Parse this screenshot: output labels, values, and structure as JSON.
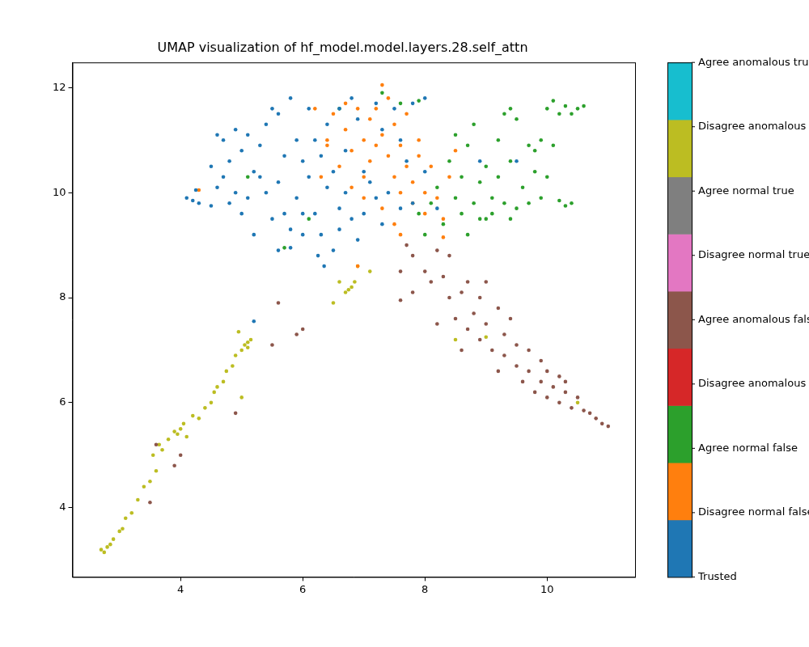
{
  "chart_data": {
    "type": "scatter",
    "title": "UMAP visualization of hf_model.model.layers.28.self_attn",
    "xlim": [
      2.23,
      11.44
    ],
    "xticks": [
      4,
      6,
      8,
      10
    ],
    "ylim": [
      2.68,
      12.48
    ],
    "yticks": [
      4,
      6,
      8,
      10,
      12
    ],
    "grid": false,
    "marker": "circle",
    "series": [
      {
        "name": "Trusted",
        "color": "#1f77b4",
        "values": [
          [
            4.1,
            9.9
          ],
          [
            4.2,
            9.85
          ],
          [
            4.3,
            9.8
          ],
          [
            4.25,
            10.05
          ],
          [
            4.5,
            9.75
          ],
          [
            4.6,
            10.1
          ],
          [
            4.7,
            10.3
          ],
          [
            4.8,
            10.6
          ],
          [
            4.7,
            11.0
          ],
          [
            4.9,
            11.2
          ],
          [
            5.0,
            10.8
          ],
          [
            5.1,
            11.1
          ],
          [
            5.2,
            10.4
          ],
          [
            5.3,
            10.9
          ],
          [
            5.4,
            11.3
          ],
          [
            5.5,
            11.6
          ],
          [
            5.6,
            11.5
          ],
          [
            5.4,
            10.0
          ],
          [
            5.6,
            10.2
          ],
          [
            5.7,
            9.6
          ],
          [
            5.8,
            9.3
          ],
          [
            5.5,
            9.5
          ],
          [
            5.9,
            9.9
          ],
          [
            6.0,
            10.6
          ],
          [
            6.1,
            10.3
          ],
          [
            6.2,
            9.6
          ],
          [
            6.3,
            9.2
          ],
          [
            6.25,
            8.8
          ],
          [
            6.35,
            8.6
          ],
          [
            6.5,
            8.9
          ],
          [
            6.6,
            9.3
          ],
          [
            6.4,
            10.1
          ],
          [
            6.5,
            10.4
          ],
          [
            6.7,
            10.0
          ],
          [
            6.8,
            9.5
          ],
          [
            6.9,
            9.1
          ],
          [
            7.0,
            9.6
          ],
          [
            7.1,
            10.2
          ],
          [
            6.2,
            11.0
          ],
          [
            6.4,
            11.3
          ],
          [
            6.6,
            11.6
          ],
          [
            6.8,
            11.8
          ],
          [
            6.9,
            11.4
          ],
          [
            7.2,
            11.7
          ],
          [
            7.3,
            11.2
          ],
          [
            7.5,
            11.6
          ],
          [
            7.6,
            11.0
          ],
          [
            7.7,
            10.6
          ],
          [
            7.4,
            10.0
          ],
          [
            7.6,
            9.7
          ],
          [
            7.3,
            9.4
          ],
          [
            7.8,
            9.8
          ],
          [
            8.0,
            10.4
          ],
          [
            7.8,
            11.7
          ],
          [
            8.0,
            11.8
          ],
          [
            5.0,
            9.6
          ],
          [
            5.2,
            9.2
          ],
          [
            5.6,
            8.9
          ],
          [
            5.8,
            8.95
          ],
          [
            6.0,
            9.2
          ],
          [
            4.9,
            10.0
          ],
          [
            4.8,
            9.8
          ],
          [
            5.3,
            10.3
          ],
          [
            5.7,
            10.7
          ],
          [
            5.9,
            11.0
          ],
          [
            6.1,
            11.6
          ],
          [
            5.8,
            11.8
          ],
          [
            6.3,
            10.7
          ],
          [
            6.7,
            10.8
          ],
          [
            7.0,
            10.4
          ],
          [
            4.6,
            11.1
          ],
          [
            4.5,
            10.5
          ],
          [
            5.1,
            9.9
          ],
          [
            6.0,
            9.6
          ],
          [
            6.6,
            9.7
          ],
          [
            7.2,
            9.9
          ],
          [
            8.2,
            9.7
          ],
          [
            8.9,
            10.6
          ],
          [
            9.5,
            10.6
          ],
          [
            5.2,
            7.55
          ]
        ]
      },
      {
        "name": "Disagree normal false",
        "color": "#ff7f0e",
        "values": [
          [
            6.4,
            11.0
          ],
          [
            6.5,
            11.5
          ],
          [
            6.6,
            10.5
          ],
          [
            6.7,
            11.2
          ],
          [
            6.8,
            10.8
          ],
          [
            6.9,
            11.6
          ],
          [
            7.0,
            11.0
          ],
          [
            7.1,
            10.6
          ],
          [
            7.1,
            11.4
          ],
          [
            7.2,
            10.9
          ],
          [
            7.3,
            12.05
          ],
          [
            7.3,
            11.1
          ],
          [
            7.4,
            10.7
          ],
          [
            7.4,
            11.8
          ],
          [
            7.5,
            10.3
          ],
          [
            7.5,
            11.3
          ],
          [
            7.6,
            10.0
          ],
          [
            7.6,
            10.9
          ],
          [
            7.7,
            10.5
          ],
          [
            7.7,
            11.5
          ],
          [
            7.8,
            10.2
          ],
          [
            7.8,
            9.8
          ],
          [
            7.9,
            10.7
          ],
          [
            8.0,
            10.0
          ],
          [
            8.0,
            9.6
          ],
          [
            8.1,
            10.5
          ],
          [
            8.2,
            9.9
          ],
          [
            8.3,
            9.5
          ],
          [
            8.4,
            10.3
          ],
          [
            7.5,
            9.4
          ],
          [
            7.3,
            9.7
          ],
          [
            7.0,
            9.9
          ],
          [
            6.8,
            10.1
          ],
          [
            6.4,
            10.9
          ],
          [
            6.3,
            10.3
          ],
          [
            8.3,
            9.15
          ],
          [
            7.6,
            9.2
          ],
          [
            7.9,
            11.0
          ],
          [
            7.2,
            11.6
          ],
          [
            6.7,
            11.7
          ],
          [
            4.3,
            10.05
          ],
          [
            6.9,
            8.6
          ],
          [
            8.5,
            10.8
          ],
          [
            6.2,
            11.6
          ],
          [
            7.0,
            10.3
          ]
        ]
      },
      {
        "name": "Agree normal false",
        "color": "#2ca02c",
        "values": [
          [
            5.1,
            10.3
          ],
          [
            5.7,
            8.95
          ],
          [
            6.1,
            9.5
          ],
          [
            6.6,
            11.6
          ],
          [
            7.3,
            11.9
          ],
          [
            7.6,
            11.7
          ],
          [
            7.9,
            11.75
          ],
          [
            8.0,
            9.2
          ],
          [
            8.1,
            9.8
          ],
          [
            8.2,
            10.1
          ],
          [
            8.3,
            9.4
          ],
          [
            8.4,
            10.6
          ],
          [
            8.5,
            9.9
          ],
          [
            8.6,
            10.3
          ],
          [
            8.6,
            9.6
          ],
          [
            8.7,
            10.9
          ],
          [
            8.8,
            9.8
          ],
          [
            8.9,
            10.2
          ],
          [
            8.9,
            9.5
          ],
          [
            9.0,
            10.5
          ],
          [
            9.1,
            9.9
          ],
          [
            9.1,
            9.6
          ],
          [
            9.2,
            10.3
          ],
          [
            9.2,
            11.0
          ],
          [
            9.3,
            9.8
          ],
          [
            9.3,
            11.5
          ],
          [
            9.4,
            11.6
          ],
          [
            9.4,
            10.6
          ],
          [
            9.5,
            9.7
          ],
          [
            9.5,
            11.4
          ],
          [
            9.6,
            10.1
          ],
          [
            9.7,
            10.9
          ],
          [
            9.7,
            9.8
          ],
          [
            9.8,
            10.4
          ],
          [
            9.9,
            9.9
          ],
          [
            9.9,
            11.0
          ],
          [
            10.0,
            10.3
          ],
          [
            10.0,
            11.6
          ],
          [
            10.1,
            11.75
          ],
          [
            10.2,
            11.5
          ],
          [
            10.3,
            11.65
          ],
          [
            10.4,
            11.5
          ],
          [
            10.5,
            11.6
          ],
          [
            10.6,
            11.65
          ],
          [
            10.2,
            9.85
          ],
          [
            10.3,
            9.75
          ],
          [
            10.4,
            9.8
          ],
          [
            10.1,
            10.9
          ],
          [
            9.8,
            10.8
          ],
          [
            8.7,
            9.2
          ],
          [
            7.9,
            9.6
          ],
          [
            9.0,
            9.5
          ],
          [
            9.4,
            9.5
          ],
          [
            8.5,
            11.1
          ],
          [
            8.8,
            11.3
          ]
        ]
      },
      {
        "name": "Disagree anomalous false",
        "color": "#d62728",
        "values": []
      },
      {
        "name": "Agree anomalous false",
        "color": "#8c564b",
        "values": [
          [
            7.6,
            8.5
          ],
          [
            7.7,
            9.0
          ],
          [
            7.8,
            8.8
          ],
          [
            7.6,
            7.95
          ],
          [
            7.8,
            8.1
          ],
          [
            8.0,
            8.5
          ],
          [
            8.1,
            8.3
          ],
          [
            8.2,
            8.9
          ],
          [
            8.3,
            8.4
          ],
          [
            8.4,
            8.0
          ],
          [
            8.5,
            7.6
          ],
          [
            8.6,
            8.1
          ],
          [
            8.7,
            8.3
          ],
          [
            8.7,
            7.4
          ],
          [
            8.8,
            7.7
          ],
          [
            8.9,
            7.2
          ],
          [
            8.9,
            8.0
          ],
          [
            9.0,
            7.5
          ],
          [
            9.1,
            7.0
          ],
          [
            9.2,
            7.8
          ],
          [
            9.3,
            7.3
          ],
          [
            9.3,
            6.9
          ],
          [
            9.4,
            7.6
          ],
          [
            9.5,
            7.1
          ],
          [
            9.5,
            6.7
          ],
          [
            9.6,
            6.4
          ],
          [
            9.7,
            7.0
          ],
          [
            9.7,
            6.6
          ],
          [
            9.8,
            6.2
          ],
          [
            9.9,
            6.8
          ],
          [
            9.9,
            6.4
          ],
          [
            10.0,
            6.1
          ],
          [
            10.0,
            6.6
          ],
          [
            10.1,
            6.3
          ],
          [
            10.2,
            6.0
          ],
          [
            10.2,
            6.5
          ],
          [
            10.3,
            6.2
          ],
          [
            10.4,
            5.9
          ],
          [
            10.5,
            6.1
          ],
          [
            10.6,
            5.85
          ],
          [
            10.7,
            5.8
          ],
          [
            10.8,
            5.7
          ],
          [
            10.9,
            5.6
          ],
          [
            11.0,
            5.55
          ],
          [
            8.4,
            8.8
          ],
          [
            9.0,
            8.3
          ],
          [
            8.6,
            7.0
          ],
          [
            9.2,
            6.6
          ],
          [
            10.3,
            6.4
          ],
          [
            8.2,
            7.5
          ],
          [
            3.9,
            4.8
          ],
          [
            4.0,
            5.0
          ],
          [
            5.6,
            7.9
          ],
          [
            5.9,
            7.3
          ],
          [
            5.5,
            7.1
          ],
          [
            6.0,
            7.4
          ],
          [
            4.9,
            5.8
          ],
          [
            3.5,
            4.1
          ],
          [
            3.6,
            5.2
          ]
        ]
      },
      {
        "name": "Disagree normal true",
        "color": "#e377c2",
        "values": []
      },
      {
        "name": "Agree normal true",
        "color": "#7f7f7f",
        "values": []
      },
      {
        "name": "Disagree anomalous true",
        "color": "#bcbd22",
        "values": [
          [
            2.7,
            3.2
          ],
          [
            2.8,
            3.25
          ],
          [
            2.75,
            3.15
          ],
          [
            2.9,
            3.4
          ],
          [
            2.85,
            3.3
          ],
          [
            3.0,
            3.55
          ],
          [
            3.1,
            3.8
          ],
          [
            3.05,
            3.6
          ],
          [
            3.2,
            3.9
          ],
          [
            3.3,
            4.15
          ],
          [
            3.4,
            4.4
          ],
          [
            3.5,
            4.5
          ],
          [
            3.6,
            4.7
          ],
          [
            3.55,
            5.0
          ],
          [
            3.7,
            5.1
          ],
          [
            3.65,
            5.2
          ],
          [
            3.8,
            5.3
          ],
          [
            3.9,
            5.45
          ],
          [
            4.0,
            5.5
          ],
          [
            4.1,
            5.35
          ],
          [
            4.2,
            5.75
          ],
          [
            4.3,
            5.7
          ],
          [
            4.4,
            5.9
          ],
          [
            4.5,
            6.0
          ],
          [
            4.55,
            6.2
          ],
          [
            4.6,
            6.3
          ],
          [
            4.7,
            6.4
          ],
          [
            4.75,
            6.6
          ],
          [
            4.85,
            6.7
          ],
          [
            4.9,
            6.9
          ],
          [
            5.0,
            7.0
          ],
          [
            5.05,
            7.1
          ],
          [
            5.1,
            7.05
          ],
          [
            5.15,
            7.2
          ],
          [
            4.95,
            7.35
          ],
          [
            5.0,
            6.1
          ],
          [
            5.1,
            7.15
          ],
          [
            6.5,
            7.9
          ],
          [
            6.7,
            8.1
          ],
          [
            6.75,
            8.15
          ],
          [
            6.8,
            8.2
          ],
          [
            6.85,
            8.3
          ],
          [
            6.6,
            8.3
          ],
          [
            6.9,
            8.6
          ],
          [
            7.1,
            8.5
          ],
          [
            8.5,
            7.2
          ],
          [
            9.0,
            7.25
          ],
          [
            10.5,
            6.0
          ],
          [
            4.05,
            5.6
          ],
          [
            3.95,
            5.4
          ]
        ]
      },
      {
        "name": "Agree anomalous true",
        "color": "#17becf",
        "values": []
      }
    ]
  }
}
